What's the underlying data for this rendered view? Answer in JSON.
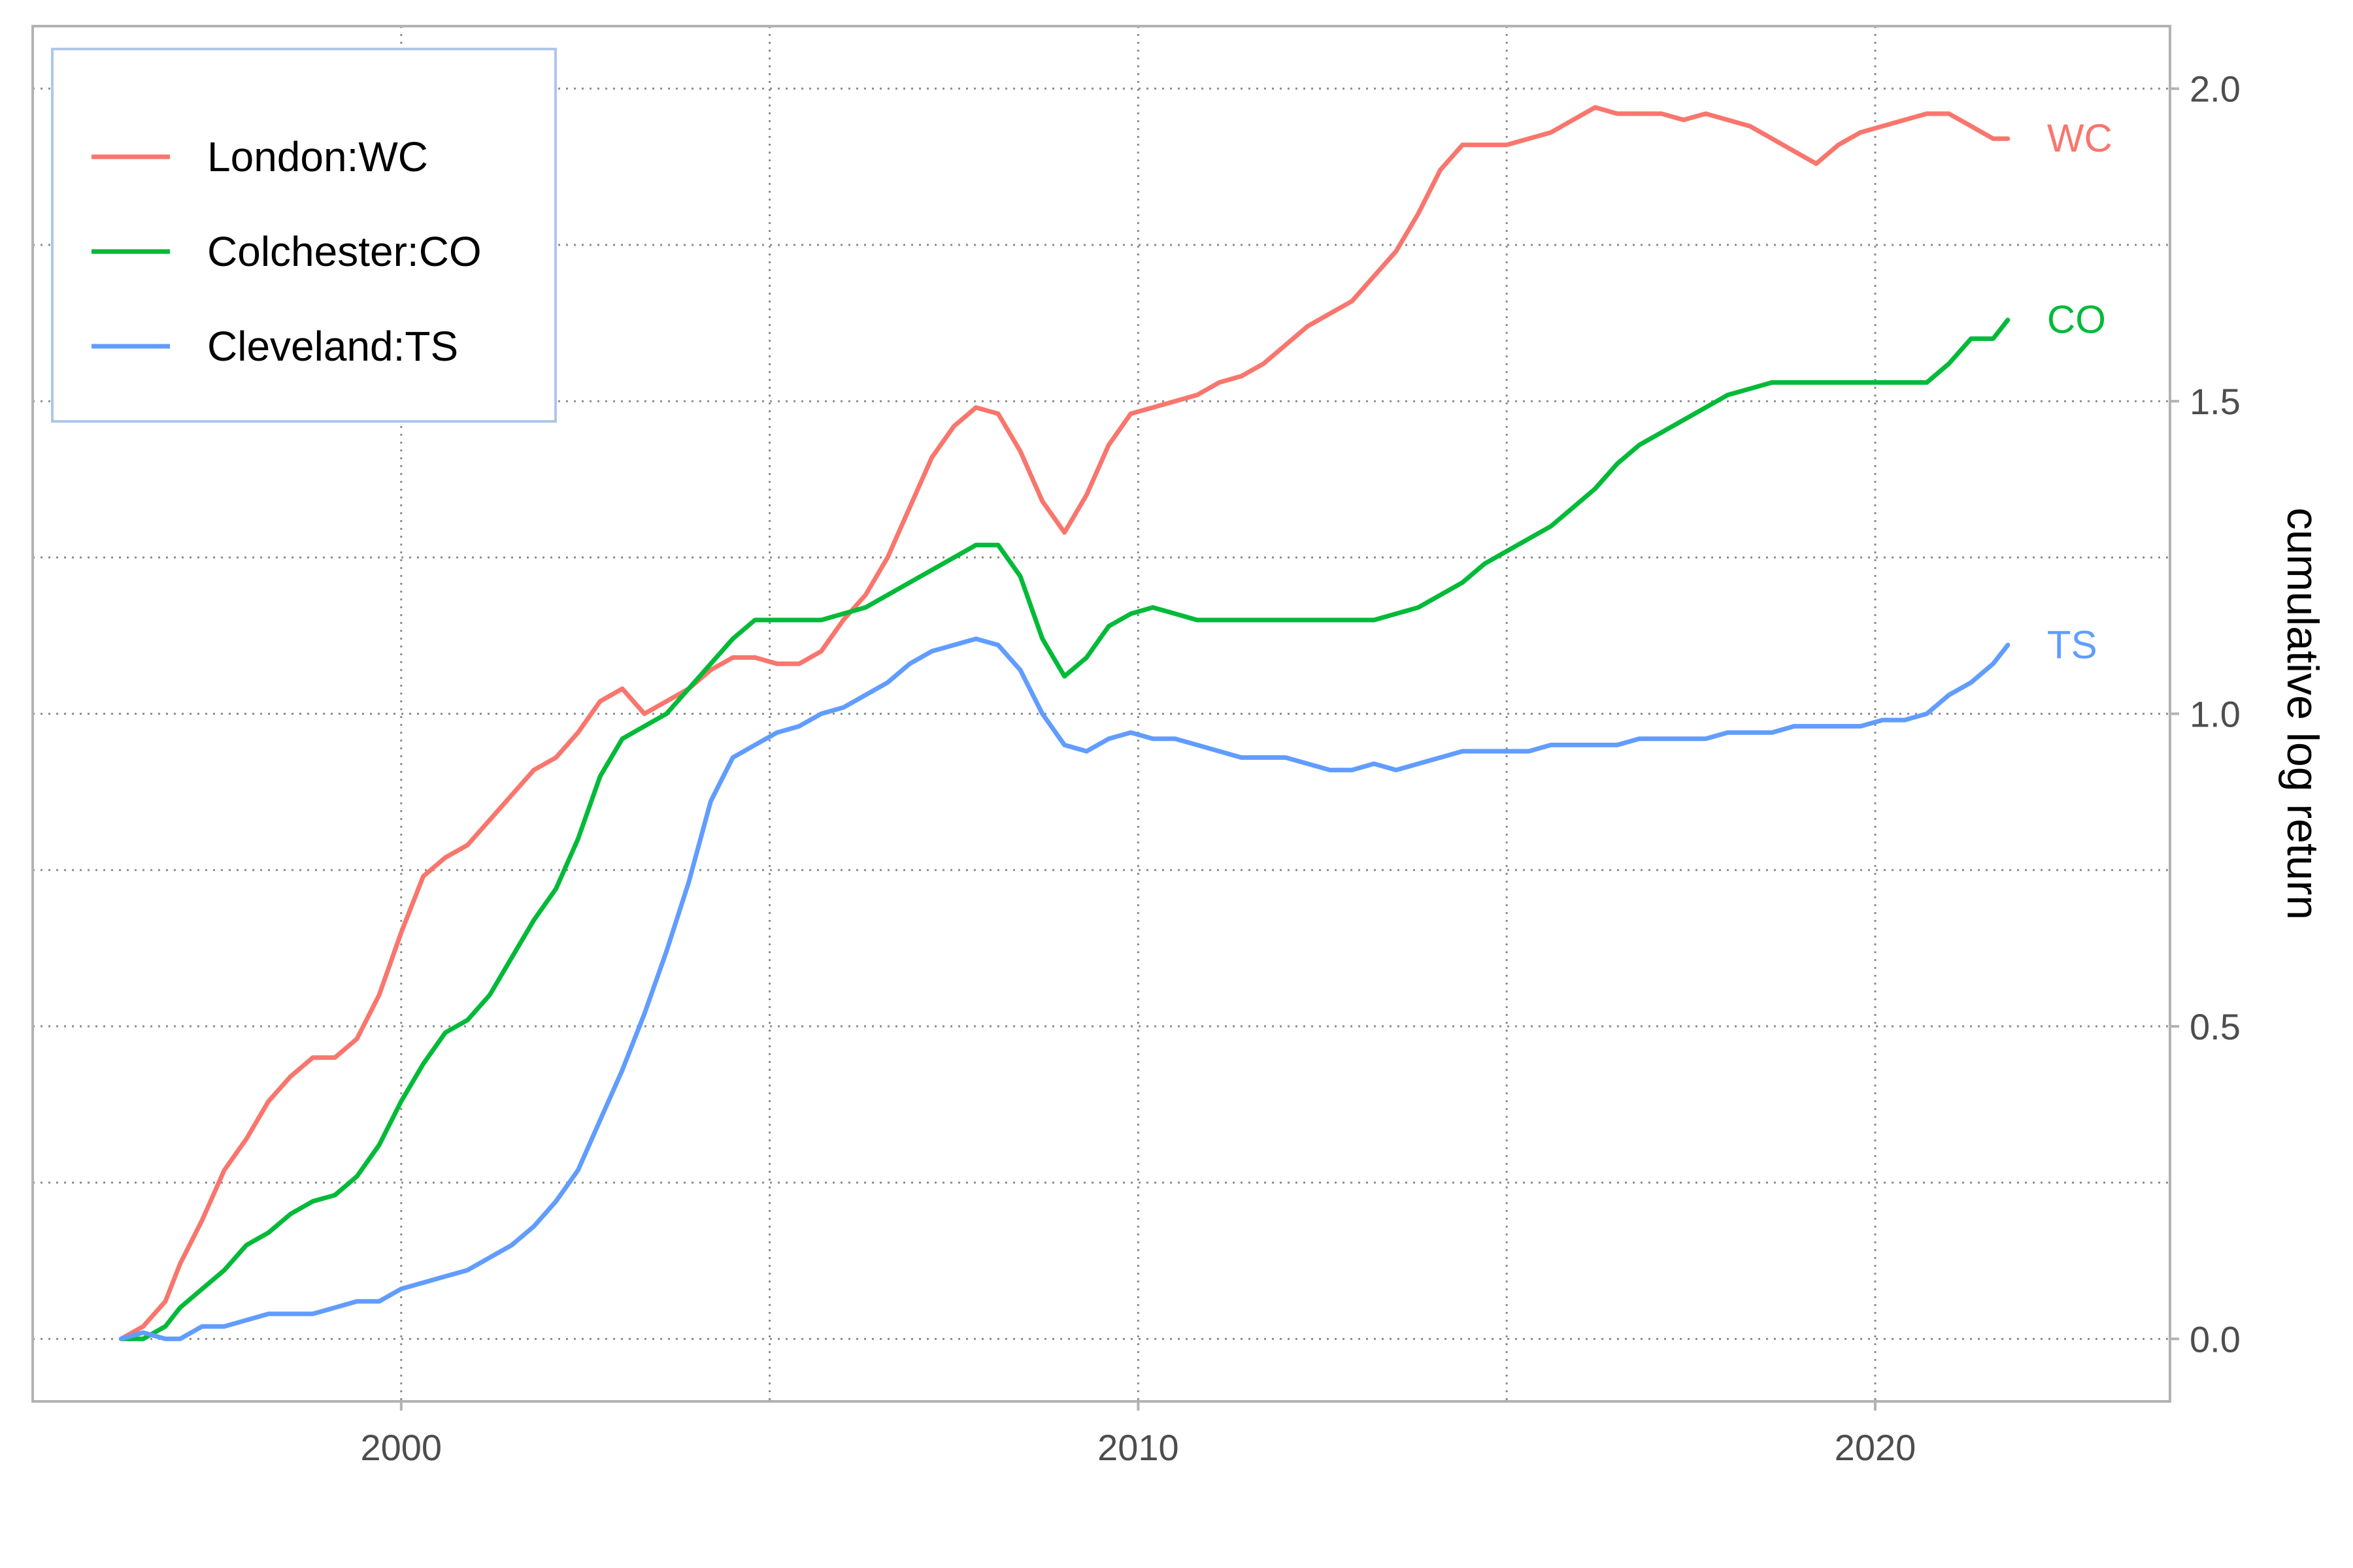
{
  "chart_data": {
    "type": "line",
    "title": "",
    "xlabel": "",
    "ylabel": "cumulative log return",
    "xlim": [
      1995,
      2024
    ],
    "ylim": [
      -0.1,
      2.1
    ],
    "x_ticks": [
      2000,
      2010,
      2020
    ],
    "x_tick_labels": [
      "2000",
      "2010",
      "2020"
    ],
    "y_ticks": [
      0.0,
      0.5,
      1.0,
      1.5,
      2.0
    ],
    "y_tick_labels": [
      "0.0",
      "0.5",
      "1.0",
      "1.5",
      "2.0"
    ],
    "grid": true,
    "legend_position": "top-left",
    "y_axis_side": "right",
    "series": [
      {
        "name": "London:WC",
        "end_label": "WC",
        "color": "#F8766D",
        "x": [
          1996.2,
          1996.5,
          1996.8,
          1997.0,
          1997.3,
          1997.6,
          1997.9,
          1998.2,
          1998.5,
          1998.8,
          1999.1,
          1999.4,
          1999.7,
          2000.0,
          2000.3,
          2000.6,
          2000.9,
          2001.2,
          2001.5,
          2001.8,
          2002.1,
          2002.4,
          2002.7,
          2003.0,
          2003.3,
          2003.6,
          2003.9,
          2004.2,
          2004.5,
          2004.8,
          2005.1,
          2005.4,
          2005.7,
          2006.0,
          2006.3,
          2006.6,
          2006.9,
          2007.2,
          2007.5,
          2007.8,
          2008.1,
          2008.4,
          2008.7,
          2009.0,
          2009.3,
          2009.6,
          2009.9,
          2010.2,
          2010.5,
          2010.8,
          2011.1,
          2011.4,
          2011.7,
          2012.0,
          2012.3,
          2012.6,
          2012.9,
          2013.2,
          2013.5,
          2013.8,
          2014.1,
          2014.4,
          2014.7,
          2015.0,
          2015.3,
          2015.6,
          2015.9,
          2016.2,
          2016.5,
          2016.8,
          2017.1,
          2017.4,
          2017.7,
          2018.0,
          2018.3,
          2018.6,
          2018.9,
          2019.2,
          2019.5,
          2019.8,
          2020.1,
          2020.4,
          2020.7,
          2021.0,
          2021.3,
          2021.6,
          2021.8
        ],
        "values": [
          0.0,
          0.02,
          0.06,
          0.12,
          0.19,
          0.27,
          0.32,
          0.38,
          0.42,
          0.45,
          0.45,
          0.48,
          0.55,
          0.65,
          0.74,
          0.77,
          0.79,
          0.83,
          0.87,
          0.91,
          0.93,
          0.97,
          1.02,
          1.04,
          1.0,
          1.02,
          1.04,
          1.07,
          1.09,
          1.09,
          1.08,
          1.08,
          1.1,
          1.15,
          1.19,
          1.25,
          1.33,
          1.41,
          1.46,
          1.49,
          1.48,
          1.42,
          1.34,
          1.29,
          1.35,
          1.43,
          1.48,
          1.49,
          1.5,
          1.51,
          1.53,
          1.54,
          1.56,
          1.59,
          1.62,
          1.64,
          1.66,
          1.7,
          1.74,
          1.8,
          1.87,
          1.91,
          1.91,
          1.91,
          1.92,
          1.93,
          1.95,
          1.97,
          1.96,
          1.96,
          1.96,
          1.95,
          1.96,
          1.95,
          1.94,
          1.92,
          1.9,
          1.88,
          1.91,
          1.93,
          1.94,
          1.95,
          1.96,
          1.96,
          1.94,
          1.92,
          1.92
        ]
      },
      {
        "name": "Colchester:CO",
        "end_label": "CO",
        "color": "#00BA38",
        "x": [
          1996.2,
          1996.5,
          1996.8,
          1997.0,
          1997.3,
          1997.6,
          1997.9,
          1998.2,
          1998.5,
          1998.8,
          1999.1,
          1999.4,
          1999.7,
          2000.0,
          2000.3,
          2000.6,
          2000.9,
          2001.2,
          2001.5,
          2001.8,
          2002.1,
          2002.4,
          2002.7,
          2003.0,
          2003.3,
          2003.6,
          2003.9,
          2004.2,
          2004.5,
          2004.8,
          2005.1,
          2005.4,
          2005.7,
          2006.0,
          2006.3,
          2006.6,
          2006.9,
          2007.2,
          2007.5,
          2007.8,
          2008.1,
          2008.4,
          2008.7,
          2009.0,
          2009.3,
          2009.6,
          2009.9,
          2010.2,
          2010.5,
          2010.8,
          2011.1,
          2011.4,
          2011.7,
          2012.0,
          2012.3,
          2012.6,
          2012.9,
          2013.2,
          2013.5,
          2013.8,
          2014.1,
          2014.4,
          2014.7,
          2015.0,
          2015.3,
          2015.6,
          2015.9,
          2016.2,
          2016.5,
          2016.8,
          2017.1,
          2017.4,
          2017.7,
          2018.0,
          2018.3,
          2018.6,
          2018.9,
          2019.2,
          2019.5,
          2019.8,
          2020.1,
          2020.4,
          2020.7,
          2021.0,
          2021.3,
          2021.6,
          2021.8
        ],
        "values": [
          0.0,
          0.0,
          0.02,
          0.05,
          0.08,
          0.11,
          0.15,
          0.17,
          0.2,
          0.22,
          0.23,
          0.26,
          0.31,
          0.38,
          0.44,
          0.49,
          0.51,
          0.55,
          0.61,
          0.67,
          0.72,
          0.8,
          0.9,
          0.96,
          0.98,
          1.0,
          1.04,
          1.08,
          1.12,
          1.15,
          1.15,
          1.15,
          1.15,
          1.16,
          1.17,
          1.19,
          1.21,
          1.23,
          1.25,
          1.27,
          1.27,
          1.22,
          1.12,
          1.06,
          1.09,
          1.14,
          1.16,
          1.17,
          1.16,
          1.15,
          1.15,
          1.15,
          1.15,
          1.15,
          1.15,
          1.15,
          1.15,
          1.15,
          1.16,
          1.17,
          1.19,
          1.21,
          1.24,
          1.26,
          1.28,
          1.3,
          1.33,
          1.36,
          1.4,
          1.43,
          1.45,
          1.47,
          1.49,
          1.51,
          1.52,
          1.53,
          1.53,
          1.53,
          1.53,
          1.53,
          1.53,
          1.53,
          1.53,
          1.56,
          1.6,
          1.6,
          1.63
        ]
      },
      {
        "name": "Cleveland:TS",
        "end_label": "TS",
        "color": "#619CFF",
        "x": [
          1996.2,
          1996.5,
          1996.8,
          1997.0,
          1997.3,
          1997.6,
          1997.9,
          1998.2,
          1998.5,
          1998.8,
          1999.1,
          1999.4,
          1999.7,
          2000.0,
          2000.3,
          2000.6,
          2000.9,
          2001.2,
          2001.5,
          2001.8,
          2002.1,
          2002.4,
          2002.7,
          2003.0,
          2003.3,
          2003.6,
          2003.9,
          2004.2,
          2004.5,
          2004.8,
          2005.1,
          2005.4,
          2005.7,
          2006.0,
          2006.3,
          2006.6,
          2006.9,
          2007.2,
          2007.5,
          2007.8,
          2008.1,
          2008.4,
          2008.7,
          2009.0,
          2009.3,
          2009.6,
          2009.9,
          2010.2,
          2010.5,
          2010.8,
          2011.1,
          2011.4,
          2011.7,
          2012.0,
          2012.3,
          2012.6,
          2012.9,
          2013.2,
          2013.5,
          2013.8,
          2014.1,
          2014.4,
          2014.7,
          2015.0,
          2015.3,
          2015.6,
          2015.9,
          2016.2,
          2016.5,
          2016.8,
          2017.1,
          2017.4,
          2017.7,
          2018.0,
          2018.3,
          2018.6,
          2018.9,
          2019.2,
          2019.5,
          2019.8,
          2020.1,
          2020.4,
          2020.7,
          2021.0,
          2021.3,
          2021.6,
          2021.8
        ],
        "values": [
          0.0,
          0.01,
          0.0,
          0.0,
          0.02,
          0.02,
          0.03,
          0.04,
          0.04,
          0.04,
          0.05,
          0.06,
          0.06,
          0.08,
          0.09,
          0.1,
          0.11,
          0.13,
          0.15,
          0.18,
          0.22,
          0.27,
          0.35,
          0.43,
          0.52,
          0.62,
          0.73,
          0.86,
          0.93,
          0.95,
          0.97,
          0.98,
          1.0,
          1.01,
          1.03,
          1.05,
          1.08,
          1.1,
          1.11,
          1.12,
          1.11,
          1.07,
          1.0,
          0.95,
          0.94,
          0.96,
          0.97,
          0.96,
          0.96,
          0.95,
          0.94,
          0.93,
          0.93,
          0.93,
          0.92,
          0.91,
          0.91,
          0.92,
          0.91,
          0.92,
          0.93,
          0.94,
          0.94,
          0.94,
          0.94,
          0.95,
          0.95,
          0.95,
          0.95,
          0.96,
          0.96,
          0.96,
          0.96,
          0.97,
          0.97,
          0.97,
          0.98,
          0.98,
          0.98,
          0.98,
          0.99,
          0.99,
          1.0,
          1.03,
          1.05,
          1.08,
          1.11
        ]
      }
    ]
  }
}
